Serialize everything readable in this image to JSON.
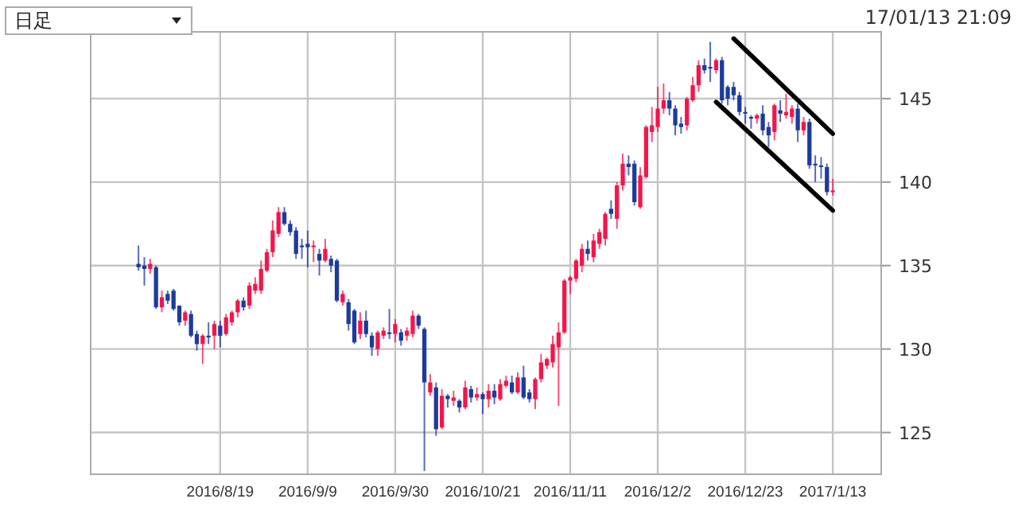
{
  "chart_data": {
    "type": "candlestick",
    "categories": [
      null,
      null,
      null,
      null,
      null,
      null,
      null,
      null,
      null,
      null,
      null,
      null,
      null,
      null,
      "2016/8/19",
      null,
      null,
      null,
      null,
      null,
      null,
      null,
      null,
      null,
      null,
      null,
      null,
      null,
      null,
      "2016/9/9",
      null,
      null,
      null,
      null,
      null,
      null,
      null,
      null,
      null,
      null,
      null,
      null,
      null,
      null,
      "2016/9/30",
      null,
      null,
      null,
      null,
      null,
      null,
      null,
      null,
      null,
      null,
      null,
      null,
      null,
      null,
      "2016/10/21",
      null,
      null,
      null,
      null,
      null,
      null,
      null,
      null,
      null,
      null,
      null,
      null,
      null,
      null,
      "2016/11/11",
      null,
      null,
      null,
      null,
      null,
      null,
      null,
      null,
      null,
      null,
      null,
      null,
      null,
      null,
      "2016/12/2",
      null,
      null,
      null,
      null,
      null,
      null,
      null,
      null,
      null,
      null,
      null,
      null,
      null,
      null,
      "2016/12/23",
      null,
      null,
      null,
      null,
      null,
      null,
      null,
      null,
      null,
      null,
      null,
      null,
      null,
      null,
      "2017/1/13"
    ],
    "ohlc": [
      [
        135.1,
        136.2,
        134.7,
        134.9
      ],
      [
        135.0,
        135.5,
        133.8,
        134.8
      ],
      [
        134.8,
        135.4,
        134.5,
        135.1
      ],
      [
        134.9,
        135.0,
        132.4,
        132.5
      ],
      [
        132.5,
        133.5,
        132.2,
        133.1
      ],
      [
        133.3,
        133.5,
        132.7,
        132.9
      ],
      [
        133.5,
        133.6,
        132.3,
        132.4
      ],
      [
        132.6,
        132.6,
        131.4,
        131.6
      ],
      [
        131.7,
        132.3,
        131.4,
        132.2
      ],
      [
        132.1,
        132.3,
        130.7,
        130.8
      ],
      [
        130.9,
        131.1,
        129.9,
        130.3
      ],
      [
        130.3,
        130.9,
        129.1,
        130.8
      ],
      [
        130.8,
        131.6,
        130.3,
        130.7
      ],
      [
        130.8,
        131.7,
        130.0,
        131.5
      ],
      [
        131.4,
        131.7,
        130.1,
        130.8
      ],
      [
        130.9,
        132.1,
        130.8,
        131.9
      ],
      [
        131.6,
        132.3,
        131.4,
        132.2
      ],
      [
        132.2,
        133.0,
        131.9,
        132.9
      ],
      [
        132.9,
        133.1,
        132.3,
        132.5
      ],
      [
        132.6,
        134.0,
        132.4,
        133.8
      ],
      [
        133.5,
        134.3,
        133.3,
        133.9
      ],
      [
        133.5,
        135.3,
        133.3,
        134.8
      ],
      [
        134.7,
        136.0,
        134.6,
        135.8
      ],
      [
        135.8,
        137.7,
        135.5,
        137.1
      ],
      [
        136.9,
        138.5,
        136.7,
        138.2
      ],
      [
        138.2,
        138.5,
        137.4,
        137.5
      ],
      [
        137.5,
        137.7,
        136.8,
        137.0
      ],
      [
        137.1,
        137.3,
        135.4,
        135.7
      ],
      [
        136.2,
        136.6,
        135.4,
        136.1
      ],
      [
        136.3,
        137.1,
        134.9,
        136.1
      ],
      [
        136.1,
        136.5,
        135.2,
        136.2
      ],
      [
        135.7,
        136.0,
        134.4,
        135.3
      ],
      [
        135.3,
        136.6,
        135.2,
        136.0
      ],
      [
        135.4,
        135.6,
        134.6,
        135.0
      ],
      [
        135.3,
        135.4,
        132.8,
        132.9
      ],
      [
        132.8,
        133.5,
        132.6,
        133.3
      ],
      [
        132.8,
        133.0,
        131.1,
        131.5
      ],
      [
        132.3,
        132.4,
        130.3,
        130.4
      ],
      [
        130.9,
        132.2,
        130.6,
        131.7
      ],
      [
        131.7,
        132.3,
        130.7,
        130.9
      ],
      [
        130.8,
        131.0,
        129.6,
        130.1
      ],
      [
        130.0,
        131.1,
        129.6,
        131.0
      ],
      [
        130.8,
        131.3,
        130.6,
        131.1
      ],
      [
        131.0,
        132.4,
        130.6,
        130.9
      ],
      [
        130.9,
        131.8,
        130.4,
        131.5
      ],
      [
        131.0,
        131.2,
        130.2,
        130.5
      ],
      [
        130.8,
        131.3,
        130.5,
        131.1
      ],
      [
        130.9,
        132.3,
        130.7,
        132.0
      ],
      [
        132.0,
        132.1,
        131.2,
        131.4
      ],
      [
        131.2,
        131.3,
        122.7,
        128.0
      ],
      [
        127.4,
        128.5,
        127.2,
        128.0
      ],
      [
        127.7,
        128.0,
        124.8,
        125.2
      ],
      [
        125.3,
        127.6,
        125.2,
        127.2
      ],
      [
        127.2,
        127.3,
        126.5,
        127.0
      ],
      [
        126.9,
        127.5,
        126.6,
        127.1
      ],
      [
        126.9,
        127.0,
        126.2,
        126.5
      ],
      [
        126.5,
        128.1,
        126.4,
        127.7
      ],
      [
        127.6,
        127.8,
        126.8,
        127.1
      ],
      [
        127.1,
        127.7,
        126.9,
        127.3
      ],
      [
        127.3,
        127.4,
        126.1,
        127.0
      ],
      [
        127.0,
        127.9,
        126.5,
        127.5
      ],
      [
        127.5,
        127.9,
        126.7,
        127.1
      ],
      [
        127.0,
        128.2,
        126.9,
        127.9
      ],
      [
        127.8,
        128.4,
        127.7,
        128.1
      ],
      [
        128.0,
        128.4,
        127.3,
        127.4
      ],
      [
        127.4,
        128.6,
        127.3,
        128.3
      ],
      [
        128.3,
        129.0,
        127.0,
        127.1
      ],
      [
        127.4,
        127.6,
        126.8,
        127.0
      ],
      [
        127.0,
        128.3,
        126.4,
        128.2
      ],
      [
        128.2,
        129.7,
        128.0,
        129.2
      ],
      [
        129.0,
        129.5,
        128.8,
        129.4
      ],
      [
        129.2,
        130.8,
        128.9,
        130.3
      ],
      [
        130.1,
        131.6,
        126.6,
        131.0
      ],
      [
        131.0,
        134.2,
        130.9,
        134.1
      ],
      [
        134.1,
        134.4,
        133.3,
        134.3
      ],
      [
        134.2,
        135.4,
        134.0,
        135.3
      ],
      [
        135.0,
        136.3,
        134.6,
        136.0
      ],
      [
        136.0,
        136.5,
        135.3,
        135.7
      ],
      [
        135.5,
        136.9,
        135.2,
        136.5
      ],
      [
        136.3,
        137.2,
        136.0,
        137.0
      ],
      [
        136.6,
        138.2,
        136.2,
        138.1
      ],
      [
        138.4,
        138.9,
        137.8,
        138.1
      ],
      [
        137.8,
        140.0,
        137.2,
        139.8
      ],
      [
        139.8,
        141.7,
        139.5,
        141.1
      ],
      [
        141.1,
        141.6,
        140.4,
        140.9
      ],
      [
        141.1,
        141.3,
        138.6,
        138.8
      ],
      [
        138.5,
        140.9,
        138.4,
        140.4
      ],
      [
        140.3,
        143.4,
        140.2,
        143.3
      ],
      [
        143.0,
        144.5,
        142.4,
        143.4
      ],
      [
        143.3,
        145.7,
        143.0,
        144.4
      ],
      [
        144.4,
        145.9,
        144.1,
        144.9
      ],
      [
        144.9,
        145.4,
        144.0,
        144.4
      ],
      [
        144.4,
        144.6,
        142.8,
        143.4
      ],
      [
        143.5,
        143.9,
        142.9,
        143.3
      ],
      [
        143.4,
        145.1,
        143.1,
        145.0
      ],
      [
        144.9,
        146.3,
        144.8,
        145.8
      ],
      [
        145.8,
        147.3,
        145.4,
        147.0
      ],
      [
        147.0,
        147.4,
        146.5,
        146.7
      ],
      [
        146.9,
        148.4,
        146.0,
        146.8
      ],
      [
        146.7,
        147.4,
        146.5,
        147.3
      ],
      [
        147.3,
        147.5,
        144.7,
        144.9
      ],
      [
        145.7,
        145.8,
        144.6,
        145.0
      ],
      [
        145.7,
        146.0,
        144.9,
        145.2
      ],
      [
        145.2,
        145.4,
        144.0,
        144.2
      ],
      [
        144.2,
        144.5,
        143.5,
        144.1
      ],
      [
        143.9,
        144.0,
        143.2,
        143.8
      ],
      [
        143.8,
        144.1,
        143.5,
        144.0
      ],
      [
        144.1,
        144.6,
        142.8,
        143.1
      ],
      [
        143.3,
        143.6,
        142.1,
        142.8
      ],
      [
        143.0,
        144.7,
        142.5,
        144.6
      ],
      [
        144.3,
        144.9,
        143.6,
        144.1
      ],
      [
        144.0,
        145.3,
        143.8,
        144.2
      ],
      [
        143.9,
        144.6,
        143.5,
        144.4
      ],
      [
        144.4,
        144.7,
        142.4,
        143.1
      ],
      [
        143.1,
        143.9,
        142.8,
        143.6
      ],
      [
        143.6,
        143.8,
        140.8,
        141.0
      ],
      [
        141.1,
        141.6,
        140.0,
        141.0
      ],
      [
        141.0,
        141.5,
        140.2,
        140.9
      ],
      [
        140.9,
        141.1,
        139.2,
        139.4
      ],
      [
        139.4,
        140.2,
        139.2,
        139.5
      ]
    ],
    "colors": [
      "#1c3b9c",
      "#1c3b9c",
      "#f5154a",
      "#1c3b9c",
      "#f5154a",
      "#1c3b9c",
      "#1c3b9c",
      "#1c3b9c",
      "#f5154a",
      "#1c3b9c",
      "#1c3b9c",
      "#f5154a",
      "#1c3b9c",
      "#f5154a",
      "#1c3b9c",
      "#f5154a",
      "#f5154a",
      "#f5154a",
      "#1c3b9c",
      "#f5154a",
      "#f5154a",
      "#f5154a",
      "#f5154a",
      "#f5154a",
      "#f5154a",
      "#1c3b9c",
      "#1c3b9c",
      "#1c3b9c",
      "#1c3b9c",
      "#1c3b9c",
      "#f5154a",
      "#1c3b9c",
      "#f5154a",
      "#1c3b9c",
      "#1c3b9c",
      "#f5154a",
      "#1c3b9c",
      "#1c3b9c",
      "#f5154a",
      "#1c3b9c",
      "#1c3b9c",
      "#f5154a",
      "#f5154a",
      "#1c3b9c",
      "#f5154a",
      "#1c3b9c",
      "#f5154a",
      "#f5154a",
      "#1c3b9c",
      "#1c3b9c",
      "#f5154a",
      "#1c3b9c",
      "#f5154a",
      "#1c3b9c",
      "#f5154a",
      "#1c3b9c",
      "#f5154a",
      "#1c3b9c",
      "#f5154a",
      "#1c3b9c",
      "#f5154a",
      "#1c3b9c",
      "#f5154a",
      "#f5154a",
      "#1c3b9c",
      "#f5154a",
      "#1c3b9c",
      "#1c3b9c",
      "#f5154a",
      "#f5154a",
      "#f5154a",
      "#f5154a",
      "#f5154a",
      "#f5154a",
      "#f5154a",
      "#f5154a",
      "#f5154a",
      "#1c3b9c",
      "#f5154a",
      "#f5154a",
      "#f5154a",
      "#1c3b9c",
      "#f5154a",
      "#f5154a",
      "#1c3b9c",
      "#1c3b9c",
      "#f5154a",
      "#f5154a",
      "#f5154a",
      "#f5154a",
      "#f5154a",
      "#1c3b9c",
      "#1c3b9c",
      "#1c3b9c",
      "#f5154a",
      "#f5154a",
      "#f5154a",
      "#1c3b9c",
      "#1c3b9c",
      "#f5154a",
      "#1c3b9c",
      "#1c3b9c",
      "#1c3b9c",
      "#1c3b9c",
      "#1c3b9c",
      "#1c3b9c",
      "#f5154a",
      "#1c3b9c",
      "#1c3b9c",
      "#f5154a",
      "#1c3b9c",
      "#f5154a",
      "#f5154a",
      "#1c3b9c",
      "#f5154a",
      "#1c3b9c",
      "#1c3b9c",
      "#1c3b9c",
      "#1c3b9c",
      "#f5154a"
    ],
    "series": [
      {
        "type": "line",
        "values": [
          null,
          null,
          null,
          null,
          null,
          null,
          null,
          null,
          null,
          null,
          null,
          null,
          null,
          null,
          null,
          null,
          null,
          null,
          null,
          null,
          null,
          null,
          null,
          null,
          null,
          null,
          null,
          null,
          null,
          null,
          null,
          null,
          null,
          null,
          null,
          null,
          null,
          null,
          null,
          null,
          null,
          null,
          null,
          null,
          null,
          null,
          null,
          null,
          null,
          null,
          null,
          null,
          null,
          null,
          null,
          null,
          null,
          null,
          null,
          null,
          null,
          null,
          null,
          null,
          null,
          null,
          null,
          null,
          null,
          null,
          null,
          null,
          null,
          null,
          null,
          null,
          null,
          null,
          null,
          null,
          null,
          null,
          null,
          null,
          null,
          null,
          null,
          null,
          null,
          null,
          null,
          null,
          null,
          null,
          null,
          null,
          null,
          null,
          null,
          null,
          null,
          null,
          148.6,
          null,
          null,
          null,
          null,
          null,
          null,
          null,
          null,
          null,
          null,
          null,
          null,
          null,
          null,
          null,
          null,
          142.9
        ],
        "color": "#000000"
      },
      {
        "type": "line",
        "values": [
          null,
          null,
          null,
          null,
          null,
          null,
          null,
          null,
          null,
          null,
          null,
          null,
          null,
          null,
          null,
          null,
          null,
          null,
          null,
          null,
          null,
          null,
          null,
          null,
          null,
          null,
          null,
          null,
          null,
          null,
          null,
          null,
          null,
          null,
          null,
          null,
          null,
          null,
          null,
          null,
          null,
          null,
          null,
          null,
          null,
          null,
          null,
          null,
          null,
          null,
          null,
          null,
          null,
          null,
          null,
          null,
          null,
          null,
          null,
          null,
          null,
          null,
          null,
          null,
          null,
          null,
          null,
          null,
          null,
          null,
          null,
          null,
          null,
          null,
          null,
          null,
          null,
          null,
          null,
          null,
          null,
          null,
          null,
          null,
          null,
          null,
          null,
          null,
          null,
          null,
          null,
          null,
          null,
          null,
          null,
          null,
          null,
          null,
          null,
          144.8,
          null,
          null,
          null,
          null,
          null,
          null,
          null,
          null,
          null,
          null,
          null,
          null,
          null,
          null,
          null,
          null,
          null,
          null,
          null,
          138.3
        ],
        "color": "#000000"
      }
    ],
    "ylim": [
      122.5,
      149
    ],
    "yticks": [
      125,
      130,
      135,
      140,
      145
    ],
    "grid": true,
    "annotations": [
      "日足",
      "17/01/13 21:09"
    ]
  }
}
